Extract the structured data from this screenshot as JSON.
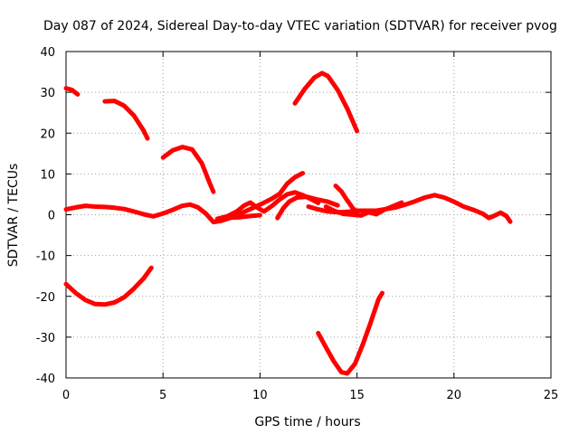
{
  "chart_data": {
    "type": "line",
    "title": "Day 087 of 2024, Sidereal Day-to-day VTEC variation (SDTVAR) for receiver pvog",
    "xlabel": "GPS time / hours",
    "ylabel": "SDTVAR / TECUs",
    "xlim": [
      0,
      25
    ],
    "ylim": [
      -40,
      40
    ],
    "xticks": [
      0,
      5,
      10,
      15,
      20,
      25
    ],
    "yticks": [
      -40,
      -30,
      -20,
      -10,
      0,
      10,
      20,
      30,
      40
    ],
    "grid": true,
    "color": "#ff0000",
    "series": [
      {
        "name": "s1",
        "points": [
          [
            0.0,
            1.3
          ],
          [
            0.5,
            1.8
          ],
          [
            1.0,
            2.2
          ],
          [
            1.5,
            2.0
          ],
          [
            2.0,
            1.9
          ],
          [
            2.5,
            1.7
          ],
          [
            3.0,
            1.4
          ],
          [
            3.5,
            0.8
          ],
          [
            4.0,
            0.1
          ],
          [
            4.5,
            -0.4
          ],
          [
            5.0,
            0.3
          ],
          [
            5.5,
            1.2
          ],
          [
            6.0,
            2.2
          ],
          [
            6.4,
            2.5
          ],
          [
            6.8,
            1.8
          ],
          [
            7.2,
            0.3
          ],
          [
            7.6,
            -1.8
          ],
          [
            8.0,
            -1.5
          ],
          [
            8.5,
            -0.7
          ],
          [
            9.0,
            -0.6
          ],
          [
            9.5,
            -0.3
          ],
          [
            10.0,
            -0.1
          ]
        ]
      },
      {
        "name": "s2",
        "points": [
          [
            7.8,
            -1.0
          ],
          [
            8.3,
            -0.4
          ],
          [
            8.8,
            0.8
          ],
          [
            9.2,
            2.3
          ],
          [
            9.5,
            3.0
          ],
          [
            9.8,
            1.9
          ],
          [
            10.2,
            0.8
          ],
          [
            10.6,
            2.1
          ],
          [
            11.0,
            3.7
          ],
          [
            11.4,
            5.0
          ],
          [
            11.8,
            5.5
          ],
          [
            12.2,
            4.8
          ],
          [
            12.6,
            3.9
          ],
          [
            13.0,
            2.9
          ]
        ]
      },
      {
        "name": "s3",
        "points": [
          [
            8.6,
            -0.2
          ],
          [
            9.1,
            0.5
          ],
          [
            9.6,
            1.6
          ],
          [
            10.1,
            2.7
          ],
          [
            10.6,
            3.9
          ],
          [
            11.0,
            5.1
          ]
        ]
      },
      {
        "name": "s4",
        "points": [
          [
            10.9,
            -0.8
          ],
          [
            11.2,
            1.6
          ],
          [
            11.5,
            3.2
          ],
          [
            11.9,
            4.2
          ],
          [
            12.4,
            4.4
          ],
          [
            12.9,
            3.8
          ],
          [
            13.5,
            3.2
          ],
          [
            14.0,
            2.3
          ]
        ]
      },
      {
        "name": "s5",
        "points": [
          [
            11.0,
            5.0
          ],
          [
            11.4,
            7.6
          ],
          [
            11.8,
            9.2
          ],
          [
            12.2,
            10.2
          ]
        ]
      },
      {
        "name": "s6",
        "points": [
          [
            12.5,
            2.0
          ],
          [
            13.0,
            1.3
          ],
          [
            13.5,
            0.8
          ],
          [
            14.0,
            0.6
          ],
          [
            14.5,
            0.7
          ],
          [
            15.0,
            1.0
          ],
          [
            15.5,
            1.0
          ],
          [
            16.0,
            1.0
          ],
          [
            16.5,
            1.4
          ],
          [
            17.0,
            1.8
          ],
          [
            17.5,
            2.5
          ],
          [
            18.0,
            3.3
          ],
          [
            18.5,
            4.2
          ],
          [
            19.0,
            4.8
          ],
          [
            19.5,
            4.2
          ],
          [
            20.0,
            3.2
          ],
          [
            20.5,
            2.0
          ],
          [
            21.0,
            1.2
          ],
          [
            21.5,
            0.2
          ],
          [
            21.8,
            -0.8
          ],
          [
            22.1,
            -0.2
          ],
          [
            22.4,
            0.5
          ],
          [
            22.7,
            -0.3
          ],
          [
            22.9,
            -1.7
          ]
        ]
      },
      {
        "name": "s7",
        "points": [
          [
            13.4,
            2.0
          ],
          [
            13.8,
            1.0
          ],
          [
            14.3,
            0.2
          ],
          [
            14.8,
            0.0
          ],
          [
            15.2,
            -0.2
          ],
          [
            15.6,
            0.6
          ],
          [
            16.0,
            0.1
          ],
          [
            16.4,
            1.2
          ],
          [
            16.8,
            2.0
          ],
          [
            17.3,
            3.0
          ]
        ]
      },
      {
        "name": "s8",
        "points": [
          [
            13.9,
            7.1
          ],
          [
            14.2,
            5.7
          ],
          [
            14.5,
            3.5
          ],
          [
            14.8,
            1.5
          ],
          [
            15.0,
            0.8
          ]
        ]
      },
      {
        "name": "s9",
        "points": [
          [
            0.0,
            31.0
          ],
          [
            0.3,
            30.6
          ],
          [
            0.6,
            29.5
          ]
        ]
      },
      {
        "name": "s10",
        "points": [
          [
            2.0,
            27.8
          ],
          [
            2.5,
            27.9
          ],
          [
            3.0,
            26.7
          ],
          [
            3.5,
            24.3
          ],
          [
            4.0,
            20.6
          ],
          [
            4.2,
            18.7
          ]
        ]
      },
      {
        "name": "s11",
        "points": [
          [
            5.0,
            14.0
          ],
          [
            5.5,
            15.8
          ],
          [
            6.0,
            16.6
          ],
          [
            6.5,
            16.0
          ],
          [
            7.0,
            12.6
          ],
          [
            7.4,
            7.8
          ],
          [
            7.6,
            5.6
          ]
        ]
      },
      {
        "name": "s12",
        "points": [
          [
            11.8,
            27.3
          ],
          [
            12.3,
            30.8
          ],
          [
            12.8,
            33.6
          ],
          [
            13.2,
            34.7
          ],
          [
            13.5,
            34.0
          ],
          [
            14.0,
            30.6
          ],
          [
            14.5,
            26.0
          ],
          [
            15.0,
            20.5
          ]
        ]
      },
      {
        "name": "s13",
        "points": [
          [
            0.0,
            -17.0
          ],
          [
            0.5,
            -19.2
          ],
          [
            1.0,
            -20.9
          ],
          [
            1.5,
            -21.9
          ],
          [
            2.0,
            -22.0
          ],
          [
            2.5,
            -21.5
          ],
          [
            3.0,
            -20.2
          ],
          [
            3.5,
            -18.1
          ],
          [
            4.0,
            -15.6
          ],
          [
            4.4,
            -13.0
          ]
        ]
      },
      {
        "name": "s14",
        "points": [
          [
            13.0,
            -29.0
          ],
          [
            13.4,
            -32.5
          ],
          [
            13.8,
            -35.9
          ],
          [
            14.2,
            -38.6
          ],
          [
            14.5,
            -38.9
          ],
          [
            14.9,
            -36.5
          ],
          [
            15.3,
            -31.8
          ],
          [
            15.7,
            -26.5
          ],
          [
            16.1,
            -20.8
          ],
          [
            16.3,
            -19.2
          ]
        ]
      }
    ]
  }
}
